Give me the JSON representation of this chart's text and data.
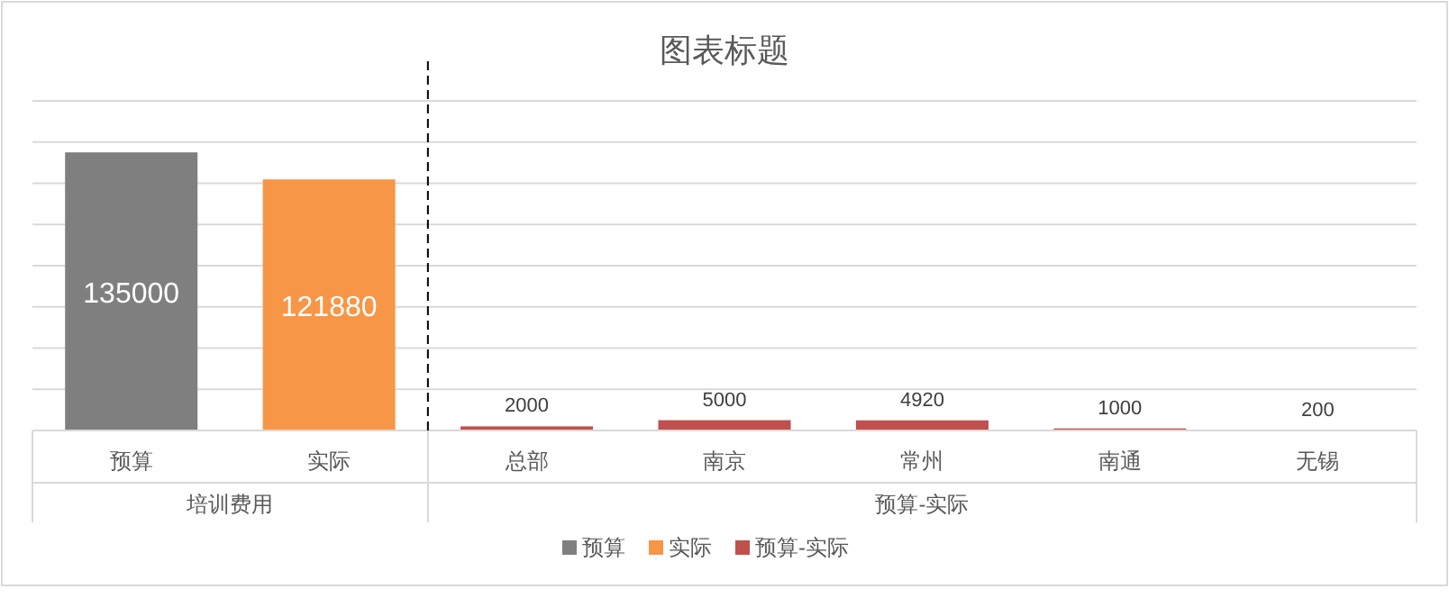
{
  "chart_data": {
    "type": "bar",
    "title": "图表标题",
    "categories": [
      "预算",
      "实际",
      "总部",
      "南京",
      "常州",
      "南通",
      "无锡"
    ],
    "series": [
      {
        "name": "预算",
        "color": "#7f7f7f",
        "values": [
          135000,
          null,
          null,
          null,
          null,
          null,
          null
        ]
      },
      {
        "name": "实际",
        "color": "#f79646",
        "values": [
          null,
          121880,
          null,
          null,
          null,
          null,
          null
        ]
      },
      {
        "name": "预算-实际",
        "color": "#c0504d",
        "values": [
          null,
          null,
          2000,
          5000,
          4920,
          1000,
          200
        ]
      }
    ],
    "ylim": [
      0,
      160000
    ],
    "yticks": [
      {
        "value": 0,
        "label": null
      },
      {
        "value": 20000,
        "label": null
      },
      {
        "value": 40000,
        "label": null
      },
      {
        "value": 60000,
        "label": null
      },
      {
        "value": 80000,
        "label": null
      },
      {
        "value": 100000,
        "label": null
      },
      {
        "value": 120000,
        "label": null
      },
      {
        "value": 140000,
        "label": null
      },
      {
        "value": 160000,
        "label": null
      }
    ],
    "grid": "y",
    "data_labels": true,
    "legend": "bottom",
    "annotations": [
      "培训费用",
      "预算-实际"
    ]
  }
}
